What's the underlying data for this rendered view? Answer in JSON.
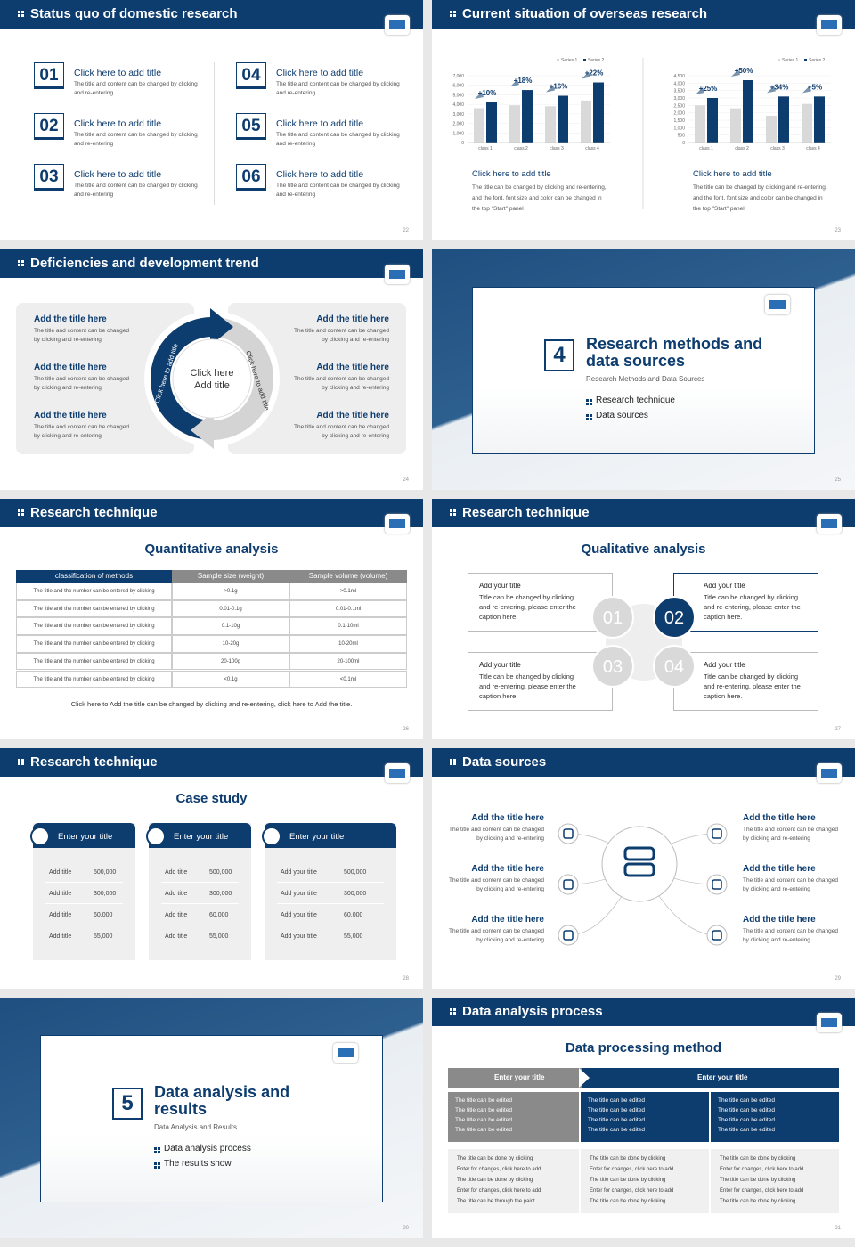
{
  "slides": [
    {
      "title": "Status quo of domestic research",
      "page": "22",
      "items": [
        {
          "num": "01",
          "title": "Click here to add title",
          "text": "The title and content can be changed by clicking and re-entering"
        },
        {
          "num": "02",
          "title": "Click here to add title",
          "text": "The title and content can be changed by clicking and re-entering"
        },
        {
          "num": "03",
          "title": "Click here to add title",
          "text": "The title and content can be changed by clicking and re-entering"
        },
        {
          "num": "04",
          "title": "Click here to add title",
          "text": "The title and content can be changed by clicking and re-entering"
        },
        {
          "num": "05",
          "title": "Click here to add title",
          "text": "The title and content can be changed by clicking and re-entering"
        },
        {
          "num": "06",
          "title": "Click here to add title",
          "text": "The title and content can be changed by clicking and re-entering"
        }
      ]
    },
    {
      "title": "Current situation of overseas research",
      "page": "23",
      "charts": [
        {
          "type": "bar",
          "categories": [
            "class 1",
            "class 2",
            "class 3",
            "class 4"
          ],
          "series": [
            {
              "name": "Series 1",
              "color": "#d9d9d9",
              "values": [
                3600,
                3900,
                3800,
                4400
              ]
            },
            {
              "name": "Series 2",
              "color": "#0d3c6e",
              "values": [
                4200,
                5500,
                4900,
                6300
              ]
            }
          ],
          "ylim": [
            0,
            7000
          ],
          "yticks": [
            0,
            {
              "value": 1000,
              "label": "1,000"
            },
            {
              "value": 2000,
              "label": "2,000"
            },
            {
              "value": 3000,
              "label": "3,000"
            },
            {
              "value": 4000,
              "label": "4,000"
            },
            {
              "value": 5000,
              "label": "5,000"
            },
            {
              "value": 6000,
              "label": "6,000"
            },
            {
              "value": 7000,
              "label": "7,000"
            }
          ],
          "growth": [
            "+10%",
            "+18%",
            "+16%",
            "+22%"
          ],
          "caption_title": "Click here to add title",
          "caption": "The title can be changed by clicking and re-entering, and the font, font size and color can be changed in the top \"Start\" panel"
        },
        {
          "type": "bar",
          "categories": [
            "class 1",
            "class 2",
            "class 3",
            "class 4"
          ],
          "series": [
            {
              "name": "Series 1",
              "color": "#d9d9d9",
              "values": [
                2500,
                2300,
                1800,
                2600
              ]
            },
            {
              "name": "Series 2",
              "color": "#0d3c6e",
              "values": [
                3000,
                4200,
                3100,
                3100
              ]
            }
          ],
          "ylim": [
            0,
            4500
          ],
          "yticks": [
            0,
            500,
            {
              "value": 1000,
              "label": "1,000"
            },
            {
              "value": 1500,
              "label": "1,500"
            },
            {
              "value": 2000,
              "label": "2,000"
            },
            {
              "value": 2500,
              "label": "2,500"
            },
            {
              "value": 3000,
              "label": "3,000"
            },
            {
              "value": 3500,
              "label": "3,500"
            },
            {
              "value": 4000,
              "label": "4,000"
            },
            {
              "value": 4500,
              "label": "4,500"
            }
          ],
          "growth": [
            "+25%",
            "+50%",
            "+34%",
            "+5%"
          ],
          "caption_title": "Click here to add title",
          "caption": "The title can be changed by clicking and re-entering, and the font, font size and color can be changed in the top \"Start\" panel"
        }
      ]
    },
    {
      "title": "Deficiencies and development trend",
      "page": "24",
      "center": "Click here Add title",
      "arc_left": "Click here to add title",
      "arc_right": "Click here to add title",
      "items": [
        {
          "title": "Add the title here",
          "text": "The title and content can be changed by clicking and re-entering"
        },
        {
          "title": "Add the title here",
          "text": "The title and content can be changed by clicking and re-entering"
        },
        {
          "title": "Add the title here",
          "text": "The title and content can be changed by clicking and re-entering"
        },
        {
          "title": "Add the title here",
          "text": "The title and content can be changed by clicking and re-entering"
        },
        {
          "title": "Add the title here",
          "text": "The title and content can be changed by clicking and re-entering"
        },
        {
          "title": "Add the title here",
          "text": "The title and content can be changed by clicking and re-entering"
        }
      ]
    },
    {
      "section_number": "4",
      "title": "Research methods and data sources",
      "subtitle": "Research Methods and Data Sources",
      "bullets": [
        "Research technique",
        "Data sources"
      ],
      "page": "25"
    },
    {
      "title": "Research technique",
      "heading": "Quantitative analysis",
      "page": "26",
      "table": {
        "header": [
          "classification of methods",
          "Sample size (weight)",
          "Sample volume (volume)"
        ],
        "rows": [
          [
            "The title and the number can be entered by clicking",
            ">0.1g",
            ">0.1ml"
          ],
          [
            "The title and the number can be entered by clicking",
            "0.01-0.1g",
            "0.01-0.1ml"
          ],
          [
            "The title and the number can be entered by clicking",
            "0.1-10g",
            "0.1-10ml"
          ],
          [
            "The title and the number can be entered by clicking",
            "10-20g",
            "10-20ml"
          ],
          [
            "The title and the number can be entered by clicking",
            "20-100g",
            "20-100ml"
          ],
          [
            "The title and the number can be entered by clicking",
            "<0.1g",
            "<0.1ml"
          ]
        ]
      },
      "note": "Click here to Add the title can be changed by clicking and re-entering, click here to Add the title."
    },
    {
      "title": "Research technique",
      "heading": "Qualitative analysis",
      "page": "27",
      "items": [
        {
          "num": "01",
          "title": "Add your title",
          "text": "Title can be changed by clicking and re-entering, please enter the caption here."
        },
        {
          "num": "02",
          "title": "Add your title",
          "text": "Title can be changed by clicking and re-entering, please enter the caption here."
        },
        {
          "num": "03",
          "title": "Add your title",
          "text": "Title can be changed by clicking and re-entering, please enter the caption here."
        },
        {
          "num": "04",
          "title": "Add your title",
          "text": "Title can be changed by clicking and re-entering, please enter the caption here."
        }
      ]
    },
    {
      "title": "Research technique",
      "heading": "Case study",
      "page": "28",
      "cards": [
        {
          "title": "Enter your title",
          "rows": [
            [
              "Add title",
              "500,000"
            ],
            [
              "Add title",
              "300,000"
            ],
            [
              "Add title",
              "60,000"
            ],
            [
              "Add title",
              "55,000"
            ]
          ]
        },
        {
          "title": "Enter your title",
          "rows": [
            [
              "Add title",
              "500,000"
            ],
            [
              "Add title",
              "300,000"
            ],
            [
              "Add title",
              "60,000"
            ],
            [
              "Add title",
              "55,000"
            ]
          ]
        },
        {
          "title": "Enter your title",
          "rows": [
            [
              "Add your title",
              "500,000"
            ],
            [
              "Add your title",
              "300,000"
            ],
            [
              "Add your title",
              "60,000"
            ],
            [
              "Add your title",
              "55,000"
            ]
          ]
        }
      ]
    },
    {
      "title": "Data sources",
      "page": "29",
      "items": [
        {
          "title": "Add the title here",
          "text": "The title and content can be changed by clicking and re-entering"
        },
        {
          "title": "Add the title here",
          "text": "The title and content can be changed by clicking and re-entering"
        },
        {
          "title": "Add the title here",
          "text": "The title and content can be changed by clicking and re-entering"
        },
        {
          "title": "Add the title here",
          "text": "The title and content can be changed by clicking and re-entering"
        },
        {
          "title": "Add the title here",
          "text": "The title and content can be changed by clicking and re-entering"
        },
        {
          "title": "Add the title here",
          "text": "The title and content can be changed by clicking and re-entering"
        }
      ]
    },
    {
      "section_number": "5",
      "title": "Data analysis and results",
      "subtitle": "Data Analysis and Results",
      "bullets": [
        "Data analysis process",
        "The results show"
      ],
      "page": "30"
    },
    {
      "title": "Data analysis process",
      "heading": "Data processing method",
      "page": "31",
      "headers": [
        "Enter your title",
        "Enter your title"
      ],
      "columns": [
        {
          "top": [
            "The title can be edited",
            "The title can be edited",
            "The title can be edited",
            "The title can be edited"
          ],
          "bottom": [
            "The title can be done by clicking",
            "Enter for changes, click here to add",
            "The title can be done by clicking",
            "Enter for changes, click here to add",
            "The title can be through the paint"
          ]
        },
        {
          "top": [
            "The title can be edited",
            "The title can be edited",
            "The title can be edited",
            "The title can be edited"
          ],
          "bottom": [
            "The title can be done by clicking",
            "Enter for changes, click here to add",
            "The title can be done by clicking",
            "Enter for changes, click here to add",
            "The title can be done by clicking"
          ]
        },
        {
          "top": [
            "The title can be edited",
            "The title can be edited",
            "The title can be edited",
            "The title can be edited"
          ],
          "bottom": [
            "The title can be done by clicking",
            "Enter for changes, click here to add",
            "The title can be done by clicking",
            "Enter for changes, click here to add",
            "The title can be done by clicking"
          ]
        }
      ]
    }
  ]
}
